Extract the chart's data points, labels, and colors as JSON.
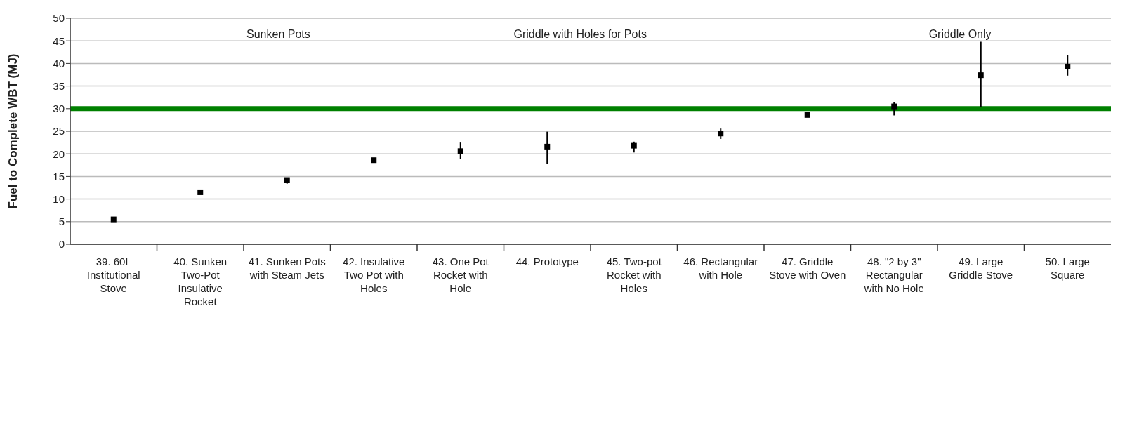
{
  "chart_data": {
    "type": "scatter",
    "ylabel": "Fuel to Complete WBT (MJ)",
    "categories": [
      "39. 60L Institutional Stove",
      "40. Sunken Two-Pot Insulative Rocket",
      "41. Sunken Pots with Steam Jets",
      "42. Insulative Two Pot with Holes",
      "43. One Pot Rocket with Hole",
      "44. Prototype",
      "45. Two-pot Rocket with Holes",
      "46. Rectangular with Hole",
      "47. Griddle Stove with Oven",
      "48. \"2 by 3\" Rectangular with No Hole",
      "49. Large Griddle Stove",
      "50. Large Square"
    ],
    "values": [
      5.5,
      11.5,
      14.2,
      18.6,
      20.6,
      21.6,
      21.8,
      24.5,
      28.6,
      30.5,
      37.4,
      39.3
    ],
    "errors": [
      null,
      null,
      [
        13.4,
        14.6
      ],
      null,
      [
        18.9,
        22.5
      ],
      [
        17.8,
        24.9
      ],
      [
        20.3,
        22.7
      ],
      [
        23.3,
        25.6
      ],
      null,
      [
        28.5,
        31.5
      ],
      [
        30.3,
        44.8
      ],
      [
        37.3,
        41.9
      ]
    ],
    "color": "#000000",
    "marker": "square",
    "ylim": [
      0,
      50
    ],
    "yticks": [
      0,
      5,
      10,
      15,
      20,
      25,
      30,
      35,
      40,
      45,
      50
    ],
    "grid": "y",
    "ref_lines": [
      {
        "axis": "y",
        "value": 30,
        "color": "#008000"
      }
    ],
    "annotations": [
      "Sunken Pots",
      "Griddle with Holes for Pots",
      "Griddle Only"
    ]
  }
}
